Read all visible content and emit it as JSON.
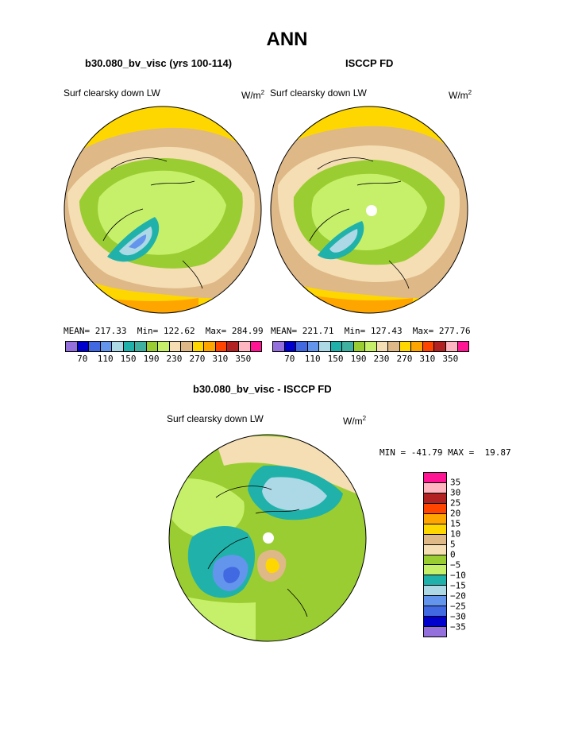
{
  "title": "ANN",
  "panels": {
    "left": {
      "title": "b30.080_bv_visc (yrs 100-114)",
      "variable": "Surf clearsky down LW",
      "units": "W/m",
      "units_sup": "2",
      "stats": "MEAN= 217.33  Min= 122.62  Max= 284.99"
    },
    "right": {
      "title": "ISCCP FD",
      "variable": "Surf clearsky down LW",
      "units": "W/m",
      "units_sup": "2",
      "stats": "MEAN= 221.71  Min= 127.43  Max= 277.76"
    },
    "diff": {
      "title": "b30.080_bv_visc - ISCCP FD",
      "variable": "Surf clearsky down LW",
      "units": "W/m",
      "units_sup": "2",
      "stats": "MIN = -41.79 MAX =  19.87"
    }
  },
  "colorbar_top": {
    "colors": [
      "#9370db",
      "#0000cd",
      "#4169e1",
      "#6495ed",
      "#add8e6",
      "#20b2aa",
      "#40b0a0",
      "#9acd32",
      "#c6f06a",
      "#f5deb3",
      "#deb887",
      "#ffd700",
      "#ffa500",
      "#ff4500",
      "#b22222",
      "#ffb6c1",
      "#ff1493"
    ],
    "labels": [
      "70",
      "110",
      "150",
      "190",
      "230",
      "270",
      "310",
      "350"
    ]
  },
  "colorbar_diff": {
    "colors": [
      "#ff1493",
      "#ffb6c1",
      "#b22222",
      "#ff4500",
      "#ffa500",
      "#ffd700",
      "#deb887",
      "#f5deb3",
      "#9acd32",
      "#c6f06a",
      "#20b2aa",
      "#add8e6",
      "#6495ed",
      "#4169e1",
      "#0000cd",
      "#9370db"
    ],
    "labels": [
      "35",
      "30",
      "25",
      "20",
      "15",
      "10",
      "5",
      "0",
      "−5",
      "−10",
      "−15",
      "−20",
      "−25",
      "−30",
      "−35"
    ]
  }
}
